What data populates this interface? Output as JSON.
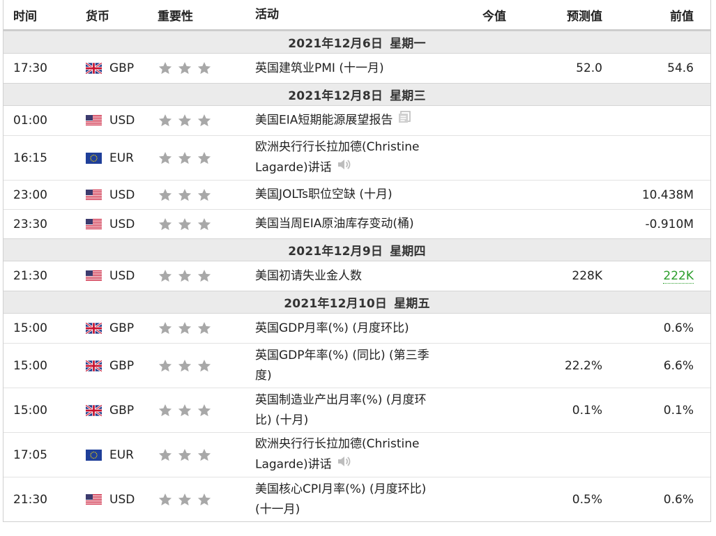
{
  "columns": {
    "time": "时间",
    "currency": "货币",
    "importance": "重要性",
    "event": "活动",
    "actual": "今值",
    "forecast": "预测值",
    "previous": "前值"
  },
  "days": [
    {
      "date": "2021年12月6日",
      "weekday": "星期一",
      "events": [
        {
          "time": "17:30",
          "currency": "GBP",
          "flag": "uk-flag-icon",
          "lines": [
            "英国建筑业PMI (十一月)"
          ],
          "icon": "",
          "actual": "",
          "forecast": "52.0",
          "previous": "54.6",
          "previous_color": ""
        }
      ]
    },
    {
      "date": "2021年12月8日",
      "weekday": "星期三",
      "events": [
        {
          "time": "01:00",
          "currency": "USD",
          "flag": "us-flag-icon",
          "lines": [
            "美国EIA短期能源展望报告"
          ],
          "icon": "report-icon",
          "actual": "",
          "forecast": "",
          "previous": "",
          "previous_color": ""
        },
        {
          "time": "16:15",
          "currency": "EUR",
          "flag": "eu-flag-icon",
          "lines": [
            "欧洲央行行长拉加德(Christine",
            "Lagarde)讲话"
          ],
          "icon": "speaker-icon",
          "actual": "",
          "forecast": "",
          "previous": "",
          "previous_color": ""
        },
        {
          "time": "23:00",
          "currency": "USD",
          "flag": "us-flag-icon",
          "lines": [
            "美国JOLTs职位空缺 (十月)"
          ],
          "icon": "",
          "actual": "",
          "forecast": "",
          "previous": "10.438M",
          "previous_color": ""
        },
        {
          "time": "23:30",
          "currency": "USD",
          "flag": "us-flag-icon",
          "lines": [
            "美国当周EIA原油库存变动(桶)"
          ],
          "icon": "",
          "actual": "",
          "forecast": "",
          "previous": "-0.910M",
          "previous_color": ""
        }
      ]
    },
    {
      "date": "2021年12月9日",
      "weekday": "星期四",
      "events": [
        {
          "time": "21:30",
          "currency": "USD",
          "flag": "us-flag-icon",
          "lines": [
            "美国初请失业金人数"
          ],
          "icon": "",
          "actual": "",
          "forecast": "228K",
          "previous": "222K",
          "previous_color": "#2a9d2a"
        }
      ]
    },
    {
      "date": "2021年12月10日",
      "weekday": "星期五",
      "events": [
        {
          "time": "15:00",
          "currency": "GBP",
          "flag": "uk-flag-icon",
          "lines": [
            "英国GDP月率(%) (月度环比)"
          ],
          "icon": "",
          "actual": "",
          "forecast": "",
          "previous": "0.6%",
          "previous_color": ""
        },
        {
          "time": "15:00",
          "currency": "GBP",
          "flag": "uk-flag-icon",
          "lines": [
            "英国GDP年率(%) (同比) (第三季",
            "度)"
          ],
          "icon": "",
          "actual": "",
          "forecast": "22.2%",
          "previous": "6.6%",
          "previous_color": ""
        },
        {
          "time": "15:00",
          "currency": "GBP",
          "flag": "uk-flag-icon",
          "lines": [
            "英国制造业产出月率(%) (月度环",
            "比) (十月)"
          ],
          "icon": "",
          "actual": "",
          "forecast": "0.1%",
          "previous": "0.1%",
          "previous_color": ""
        },
        {
          "time": "17:05",
          "currency": "EUR",
          "flag": "eu-flag-icon",
          "lines": [
            "欧洲央行行长拉加德(Christine",
            "Lagarde)讲话"
          ],
          "icon": "speaker-icon",
          "actual": "",
          "forecast": "",
          "previous": "",
          "previous_color": ""
        },
        {
          "time": "21:30",
          "currency": "USD",
          "flag": "us-flag-icon",
          "lines": [
            "美国核心CPI月率(%) (月度环比)",
            "(十一月)"
          ],
          "icon": "",
          "actual": "",
          "forecast": "0.5%",
          "previous": "0.6%",
          "previous_color": ""
        }
      ]
    }
  ],
  "star_count": 3,
  "star_color": "#a8a8a8"
}
